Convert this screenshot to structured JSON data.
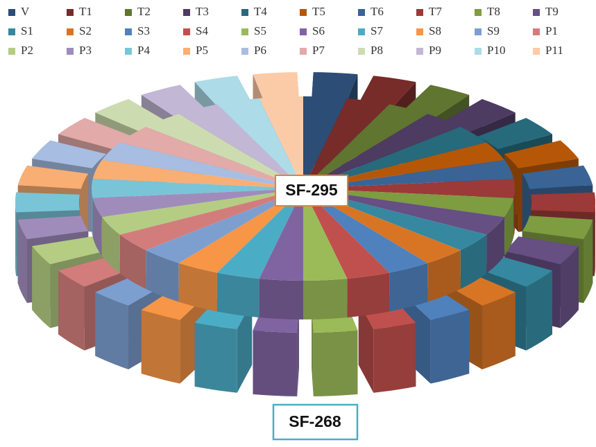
{
  "chart_data": {
    "type": "pie",
    "categories": [
      "V",
      "T1",
      "T2",
      "T3",
      "T4",
      "T5",
      "T6",
      "T7",
      "T8",
      "T9",
      "S1",
      "S2",
      "S3",
      "S4",
      "S5",
      "S6",
      "S7",
      "S8",
      "S9",
      "P1",
      "P2",
      "P3",
      "P4",
      "P5",
      "P6",
      "P7",
      "P8",
      "P9",
      "P10",
      "P11"
    ],
    "colors": [
      "#2c4d75",
      "#772c2a",
      "#5f7530",
      "#4d3b62",
      "#276a7c",
      "#b65708",
      "#3a6496",
      "#9b3a38",
      "#7e9c40",
      "#664f83",
      "#35889f",
      "#d87524",
      "#4f81bd",
      "#c0504d",
      "#9bbb59",
      "#8064a2",
      "#4bacc6",
      "#f79646",
      "#7c9fd0",
      "#d27d7b",
      "#b4cd83",
      "#a08cbb",
      "#7ac4d8",
      "#f9ae74",
      "#a7bde2",
      "#e2aaa8",
      "#cddcb0",
      "#c2b7d4",
      "#addbe7",
      "#fbcba8"
    ],
    "series": [
      {
        "name": "SF-295",
        "values": [
          1,
          1,
          1,
          1,
          1,
          1,
          1,
          1,
          1,
          1,
          1,
          1,
          1,
          1,
          1,
          1,
          1,
          1,
          1,
          1,
          1,
          1,
          1,
          1,
          1,
          1,
          1,
          1,
          1,
          1
        ]
      },
      {
        "name": "SF-268",
        "values": [
          1,
          1,
          1,
          1,
          1,
          1,
          1,
          1,
          1,
          1,
          1,
          1,
          1,
          1,
          1,
          1,
          1,
          1,
          1,
          1,
          1,
          1,
          1,
          1,
          1,
          1,
          1,
          1,
          1,
          1
        ]
      }
    ]
  }
}
